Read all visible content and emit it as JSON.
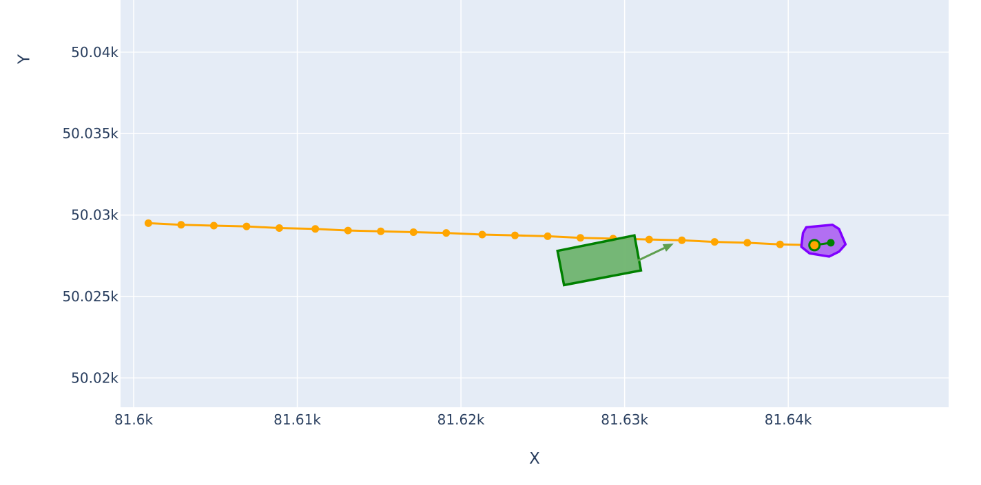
{
  "chart_data": {
    "type": "scatter",
    "title": "",
    "xlabel": "X",
    "ylabel": "Y",
    "xlim": [
      81599.2,
      81649.8
    ],
    "ylim": [
      50018.2,
      50043.2
    ],
    "grid": true,
    "legend": "none",
    "x_ticks": [
      {
        "value": 81600,
        "label": "81.6k"
      },
      {
        "value": 81610,
        "label": "81.61k"
      },
      {
        "value": 81620,
        "label": "81.62k"
      },
      {
        "value": 81630,
        "label": "81.63k"
      },
      {
        "value": 81640,
        "label": "81.64k"
      }
    ],
    "y_ticks": [
      {
        "value": 50020,
        "label": "50.02k"
      },
      {
        "value": 50025,
        "label": "50.025k"
      },
      {
        "value": 50030,
        "label": "50.03k"
      },
      {
        "value": 50035,
        "label": "50.035k"
      },
      {
        "value": 50040,
        "label": "50.04k"
      }
    ],
    "colors": {
      "plot_background": "#e5ecf6",
      "grid": "#ffffff",
      "trajectory": "#ffa500",
      "vehicle_fill": "#6fb46f",
      "vehicle_edge": "#008000",
      "arrow": "#5f9f4f",
      "region_fill": "#b26ff2",
      "region_edge": "#8000ff",
      "marker_fill": "#ffa500",
      "marker_edge": "#008000"
    },
    "series": [
      {
        "type": "line+markers",
        "x": [
          81600.9,
          81602.9,
          81604.9,
          81606.9,
          81608.9,
          81611.1,
          81613.1,
          81615.1,
          81617.1,
          81619.1,
          81621.3,
          81623.3,
          81625.3,
          81627.3,
          81629.3,
          81631.5,
          81633.5,
          81635.5,
          81637.5,
          81639.5,
          81641.6
        ],
        "y": [
          50029.5,
          50029.4,
          50029.35,
          50029.3,
          50029.2,
          50029.15,
          50029.05,
          50029.0,
          50028.95,
          50028.9,
          50028.8,
          50028.75,
          50028.7,
          50028.6,
          50028.55,
          50028.5,
          50028.45,
          50028.35,
          50028.3,
          50028.2,
          50028.15
        ]
      },
      {
        "type": "polygon",
        "x": [
          81625.9,
          81630.6,
          81631.0,
          81626.3
        ],
        "y": [
          50027.8,
          50028.75,
          50026.6,
          50025.7
        ]
      },
      {
        "type": "arrow",
        "x": [
          81630.8,
          81633.0
        ],
        "y": [
          50027.2,
          50028.25
        ]
      },
      {
        "type": "polygon",
        "x": [
          81641.1,
          81642.7,
          81643.1,
          81643.5,
          81643.1,
          81642.5,
          81641.3,
          81640.8,
          81640.9
        ],
        "y": [
          50029.25,
          50029.4,
          50029.15,
          50028.2,
          50027.75,
          50027.45,
          50027.65,
          50028.05,
          50028.9
        ]
      },
      {
        "type": "line+markers",
        "x": [
          81641.6,
          81642.6
        ],
        "y": [
          50028.15,
          50028.3
        ]
      }
    ]
  }
}
